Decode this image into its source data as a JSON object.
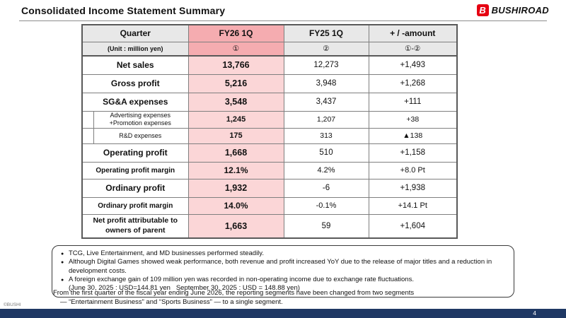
{
  "header": {
    "title": "Consolidated Income Statement Summary",
    "brand": "BUSHIROAD",
    "logo_letter": "B"
  },
  "accent_colors": {
    "brand_red": "#E60012",
    "column_pink": "#FBD6D7",
    "header_pink": "#F5ACB0",
    "footer_navy": "#1F3864"
  },
  "table": {
    "header": {
      "quarter": "Quarter",
      "unit": "(Unit : million yen)",
      "fy26": "FY26 1Q",
      "fy26_num": "①",
      "fy25": "FY25 1Q",
      "fy25_num": "②",
      "diff": "+ / -amount",
      "diff_num": "①-②"
    },
    "rows": [
      {
        "type": "main",
        "label": [
          "Net sales"
        ],
        "fy26": "13,766",
        "fy25": "12,273",
        "diff": "+1,493"
      },
      {
        "type": "main",
        "label": [
          "Gross profit"
        ],
        "fy26": "5,216",
        "fy25": "3,948",
        "diff": "+1,268"
      },
      {
        "type": "main",
        "label": [
          "SG&A expenses"
        ],
        "fy26": "3,548",
        "fy25": "3,437",
        "diff": "+111"
      },
      {
        "type": "sub",
        "label": [
          "Advertising expenses",
          "+Promotion expenses"
        ],
        "fy26": "1,245",
        "fy25": "1,207",
        "diff": "+38"
      },
      {
        "type": "sub",
        "label": [
          "R&D expenses"
        ],
        "fy26": "175",
        "fy25": "313",
        "diff": "▲138"
      },
      {
        "type": "main",
        "label": [
          "Operating profit"
        ],
        "fy26": "1,668",
        "fy25": "510",
        "diff": "+1,158"
      },
      {
        "type": "margin",
        "label": [
          "Operating profit margin"
        ],
        "fy26": "12.1%",
        "fy25": "4.2%",
        "diff": "+8.0 Pt"
      },
      {
        "type": "main",
        "label": [
          "Ordinary profit"
        ],
        "fy26": "1,932",
        "fy25": "-6",
        "diff": "+1,938"
      },
      {
        "type": "margin",
        "label": [
          "Ordinary profit margin"
        ],
        "fy26": "14.0%",
        "fy25": "-0.1%",
        "diff": "+14.1 Pt"
      },
      {
        "type": "main2",
        "label": [
          "Net profit attributable to",
          "owners of parent"
        ],
        "fy26": "1,663",
        "fy25": "59",
        "diff": "+1,604"
      }
    ]
  },
  "notes": {
    "bullet_char": "●",
    "bullets": [
      "TCG, Live Entertainment, and MD businesses performed steadily.",
      "Although Digital Games showed weak performance, both revenue and profit increased YoY due to the release of major titles and a reduction in development costs.",
      "A foreign exchange gain of 109 million yen was recorded in non-operating income due to exchange rate fluctuations."
    ],
    "sub_note": "(June 30, 2025 : USD=144.81 yen   September 30, 2025 : USD = 148.88 yen)"
  },
  "footnote": {
    "line1": "From the first quarter of the fiscal year ending June 2026, the reporting segments have been changed from two segments",
    "line2": "— “Entertainment Business” and “Sports Business” — to a single segment."
  },
  "footer": {
    "copyright": "©BUSHI",
    "page_number": "4"
  }
}
